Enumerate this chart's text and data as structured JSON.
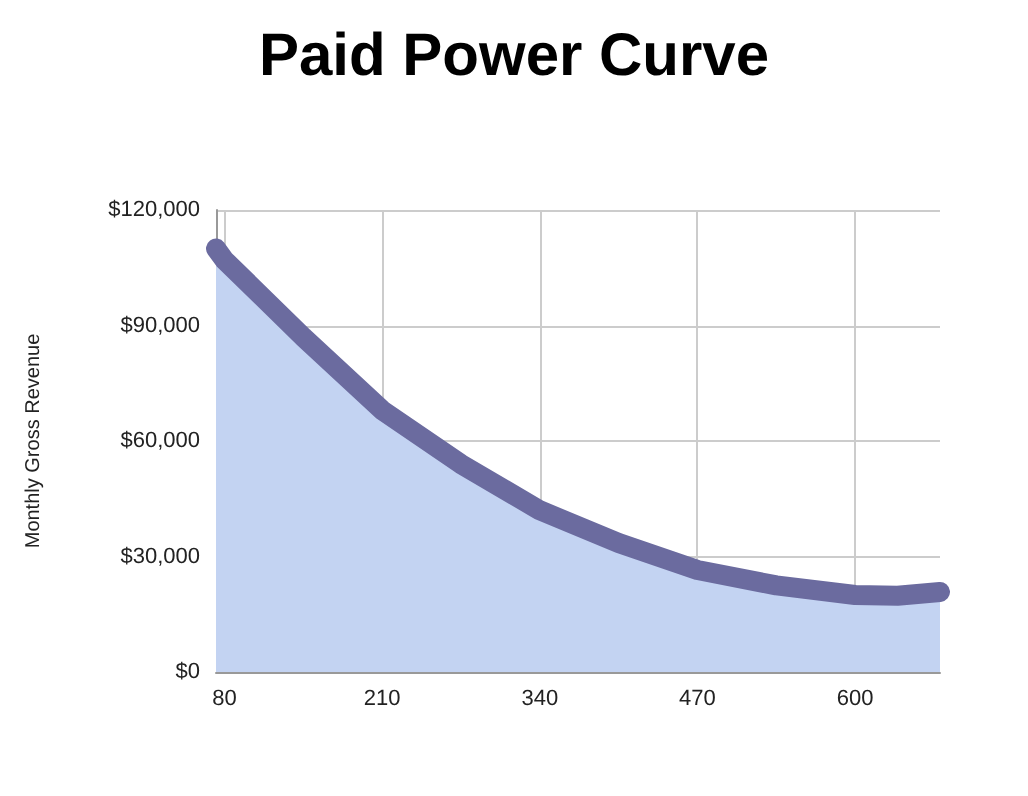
{
  "chart_data": {
    "type": "area",
    "title": "Paid Power Curve",
    "ylabel": "Monthly Gross Revenue",
    "x": [
      73,
      80,
      145,
      210,
      275,
      340,
      405,
      470,
      535,
      600,
      635,
      670
    ],
    "series": [
      {
        "color": "#6b6b9f",
        "values": [
          110000,
          107000,
          87000,
          68000,
          54000,
          42000,
          33500,
          26500,
          22500,
          20000,
          19800,
          20800
        ]
      }
    ],
    "xlim": [
      73,
      670
    ],
    "xticks": [
      80,
      210,
      340,
      470,
      600
    ],
    "ylim": [
      0,
      120000
    ],
    "yticks": [
      {
        "value": 0,
        "label": "$0"
      },
      {
        "value": 30000,
        "label": "$30,000"
      },
      {
        "value": 60000,
        "label": "$60,000"
      },
      {
        "value": 90000,
        "label": "$90,000"
      },
      {
        "value": 120000,
        "label": "$120,000"
      }
    ],
    "grid": true,
    "line_style": "solid"
  }
}
